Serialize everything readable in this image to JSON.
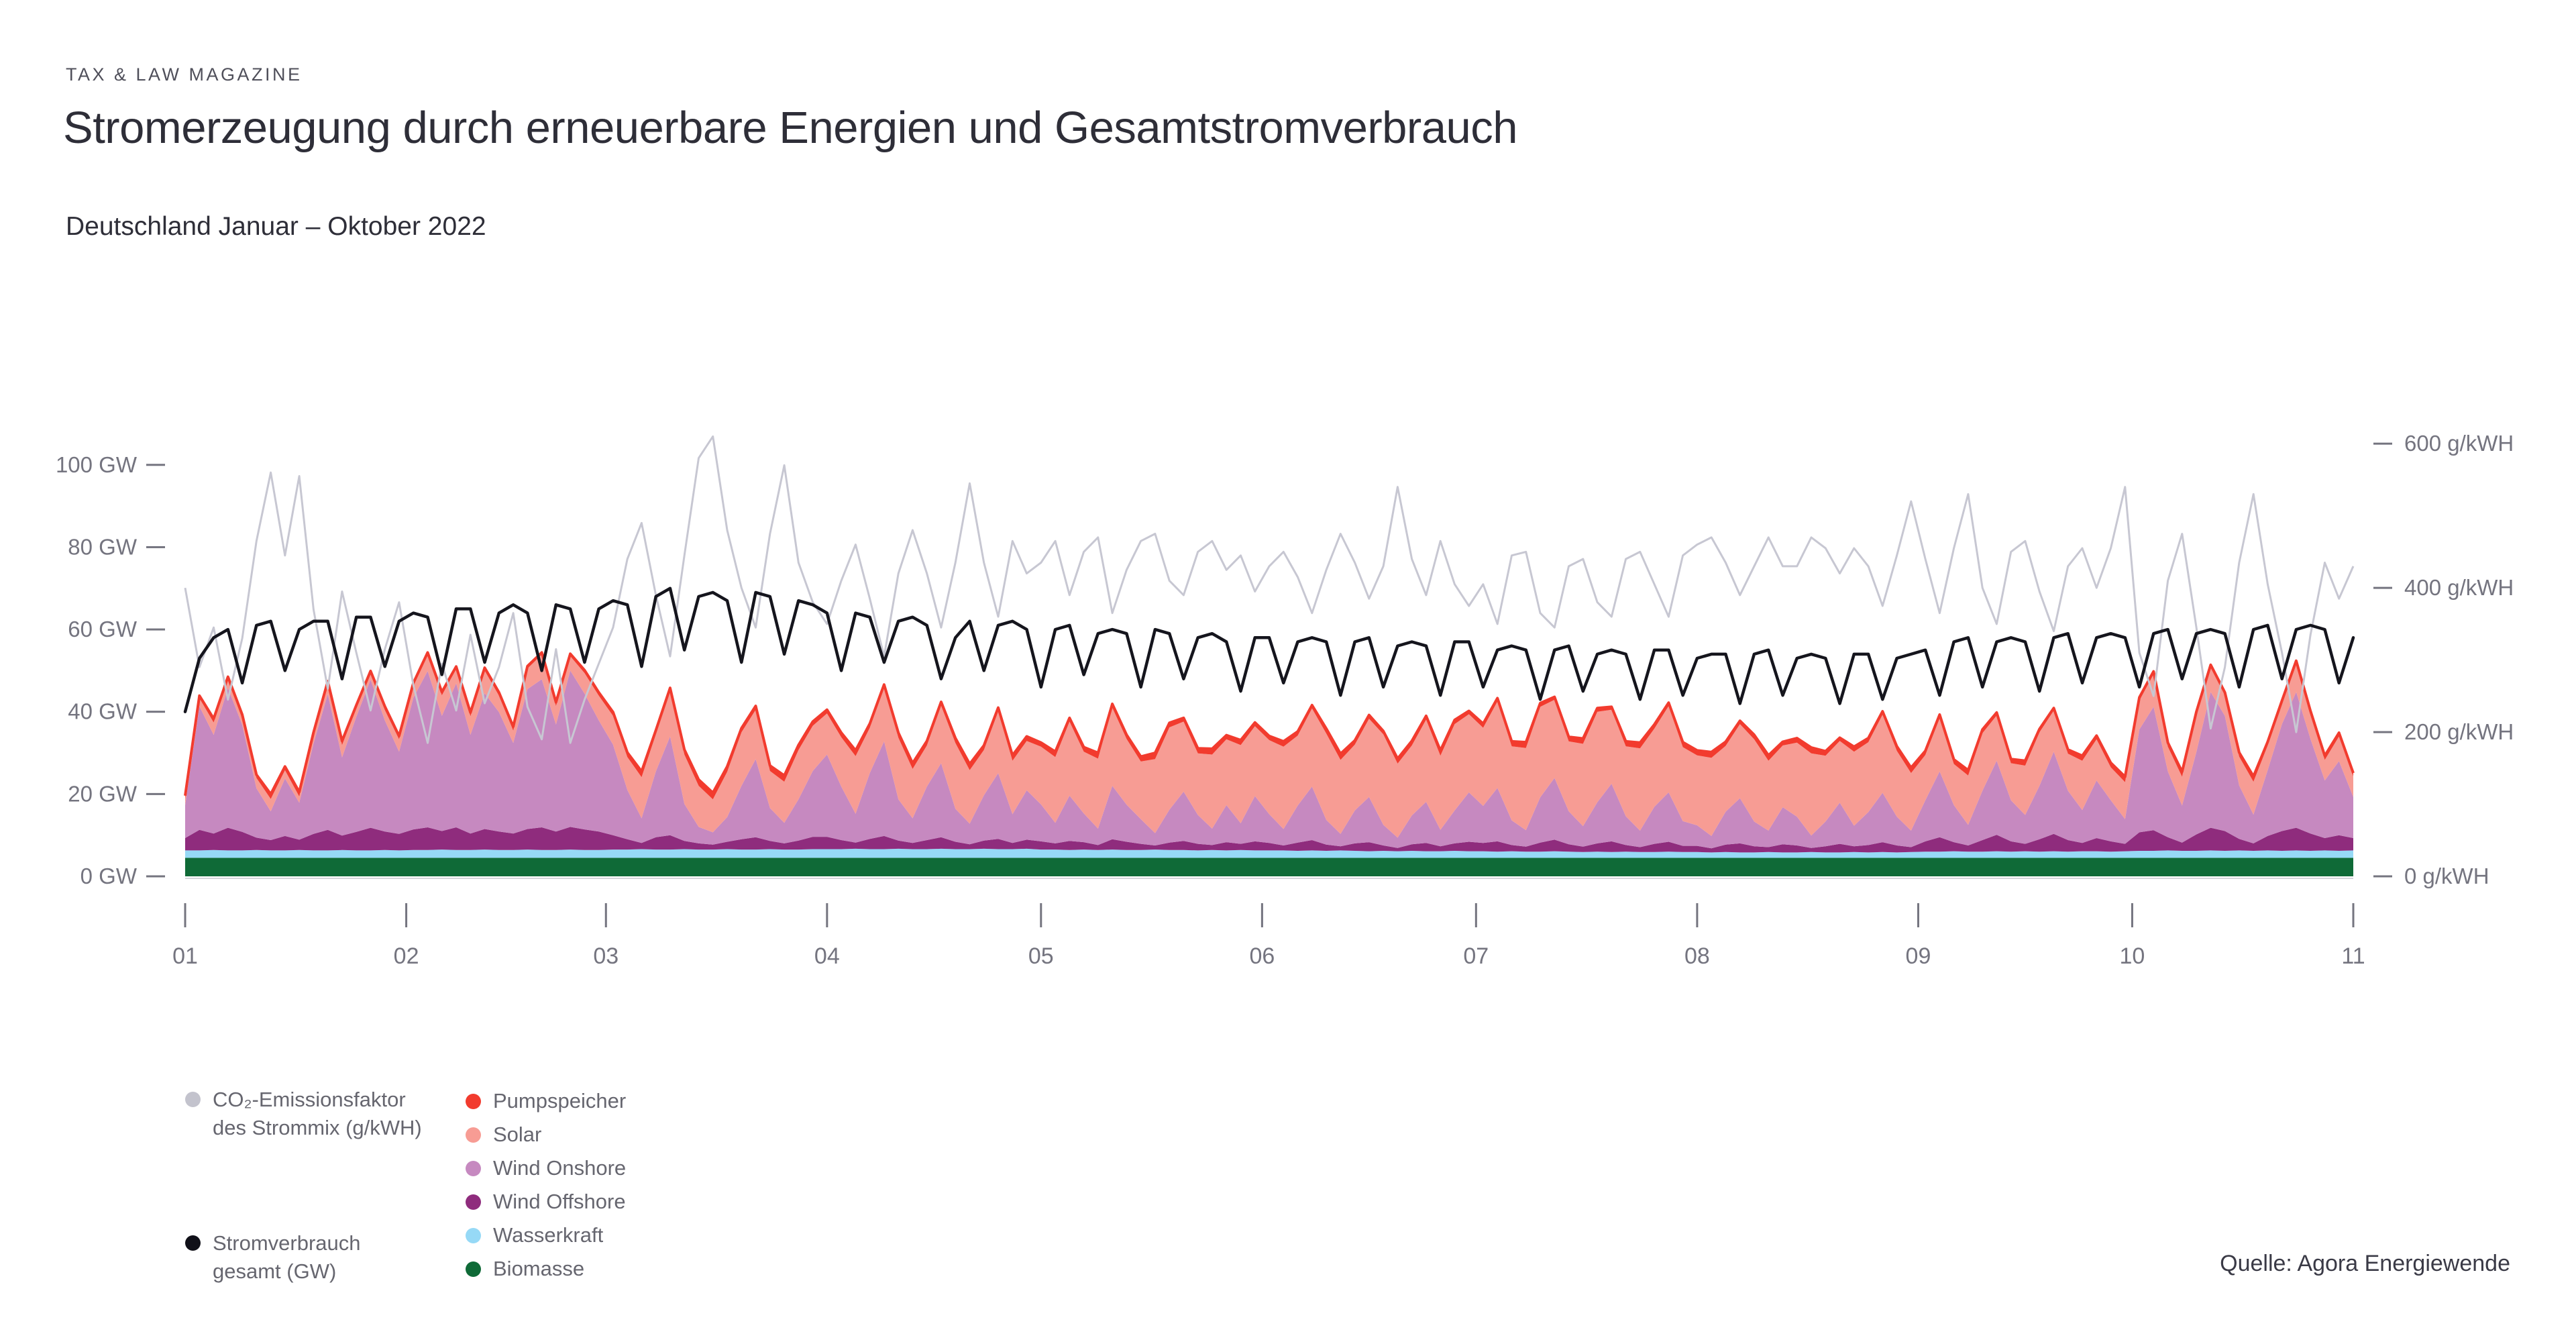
{
  "header": {
    "eyebrow": "TAX & LAW MAGAZINE",
    "title": "Stromerzeugung durch erneuerbare Energien und Gesamtstromverbrauch",
    "subtitle": "Deutschland Januar – Oktober 2022"
  },
  "source": "Quelle: Agora Energiewende",
  "legend": {
    "left": [
      {
        "key": "co2",
        "label": "CO₂-Emissionsfaktor des Strommix (g/kWH)",
        "dot": "#c3c3cd"
      },
      {
        "key": "verbrauch",
        "label": "Stromverbrauch gesamt (GW)",
        "dot": "#101018"
      }
    ],
    "right": [
      {
        "key": "pumpspeicher",
        "label": "Pumpspeicher",
        "dot": "#f23b2e"
      },
      {
        "key": "solar",
        "label": "Solar",
        "dot": "#f79c94"
      },
      {
        "key": "wind_onshore",
        "label": "Wind Onshore",
        "dot": "#c689c0"
      },
      {
        "key": "wind_offshore",
        "label": "Wind Offshore",
        "dot": "#8f2c7d"
      },
      {
        "key": "wasserkraft",
        "label": "Wasserkraft",
        "dot": "#96d9f6"
      },
      {
        "key": "biomasse",
        "label": "Biomasse",
        "dot": "#0f6a37"
      }
    ]
  },
  "chart_data": {
    "type": "area",
    "stacked": true,
    "title": "Stromerzeugung durch erneuerbare Energien und Gesamtstromverbrauch",
    "subtitle": "Deutschland Januar – Oktober 2022",
    "x_unit": "day_of_year_2022",
    "day_step": 2,
    "day_max": 304,
    "grid": false,
    "x_ticks": [
      {
        "label": "01",
        "day": 0
      },
      {
        "label": "02",
        "day": 31
      },
      {
        "label": "03",
        "day": 59
      },
      {
        "label": "04",
        "day": 90
      },
      {
        "label": "05",
        "day": 120
      },
      {
        "label": "06",
        "day": 151
      },
      {
        "label": "07",
        "day": 181
      },
      {
        "label": "08",
        "day": 212
      },
      {
        "label": "09",
        "day": 243
      },
      {
        "label": "10",
        "day": 273
      },
      {
        "label": "11",
        "day": 304
      }
    ],
    "y_left": {
      "unit": "GW",
      "min": 0,
      "max": 100,
      "ticks": [
        {
          "label": "0 GW",
          "value": 0
        },
        {
          "label": "20 GW",
          "value": 20
        },
        {
          "label": "40 GW",
          "value": 40
        },
        {
          "label": "60 GW",
          "value": 60
        },
        {
          "label": "80 GW",
          "value": 80
        },
        {
          "label": "100 GW",
          "value": 100
        }
      ]
    },
    "y_right": {
      "unit": "g/kWH",
      "min": 0,
      "max": 600,
      "ticks": [
        {
          "label": "0 g/kWH",
          "value": 0
        },
        {
          "label": "200 g/kWH",
          "value": 200
        },
        {
          "label": "400 g/kWH",
          "value": 400
        },
        {
          "label": "600 g/kWH",
          "value": 600
        }
      ]
    },
    "stack_order": [
      "biomasse",
      "wasserkraft",
      "wind_offshore",
      "wind_onshore",
      "solar",
      "pumpspeicher"
    ],
    "colors": {
      "pumpspeicher": "#f23b2e",
      "solar": "#f79c94",
      "wind_onshore": "#c689c0",
      "wind_offshore": "#8f2c7d",
      "wasserkraft": "#96d9f6",
      "biomasse": "#0f6a37",
      "verbrauch": "#15151d",
      "co2": "#c7c7d2",
      "axis": "#74747f",
      "baseline": "#d4d4da"
    },
    "series": {
      "biomasse": [
        4.5,
        4.5,
        4.5,
        4.5,
        4.5,
        4.5,
        4.5,
        4.5,
        4.5,
        4.5,
        4.5,
        4.5,
        4.5,
        4.5,
        4.5,
        4.5,
        4.5,
        4.5,
        4.5,
        4.5,
        4.5,
        4.5,
        4.5,
        4.5,
        4.5,
        4.5,
        4.5,
        4.5,
        4.5,
        4.5,
        4.5,
        4.5,
        4.5,
        4.5,
        4.5,
        4.5,
        4.5,
        4.5,
        4.5,
        4.5,
        4.5,
        4.5,
        4.5,
        4.5,
        4.5,
        4.5,
        4.5,
        4.5,
        4.5,
        4.5,
        4.5,
        4.5,
        4.5,
        4.5,
        4.5,
        4.5,
        4.5,
        4.5,
        4.5,
        4.5,
        4.5,
        4.5,
        4.5,
        4.5,
        4.5,
        4.5,
        4.5,
        4.5,
        4.5,
        4.5,
        4.5,
        4.5,
        4.5,
        4.5,
        4.5,
        4.5,
        4.5,
        4.5,
        4.5,
        4.5,
        4.5,
        4.5,
        4.5,
        4.5,
        4.5,
        4.5,
        4.5,
        4.5,
        4.5,
        4.5,
        4.5,
        4.5,
        4.5,
        4.5,
        4.5,
        4.5,
        4.5,
        4.5,
        4.5,
        4.5,
        4.5,
        4.5,
        4.5,
        4.5,
        4.5,
        4.5,
        4.5,
        4.5,
        4.5,
        4.5,
        4.5,
        4.5,
        4.5,
        4.5,
        4.5,
        4.5,
        4.5,
        4.5,
        4.5,
        4.5,
        4.5,
        4.5,
        4.5,
        4.5,
        4.5,
        4.5,
        4.5,
        4.5,
        4.5,
        4.5,
        4.5,
        4.5,
        4.5,
        4.5,
        4.5,
        4.5,
        4.5,
        4.5,
        4.5,
        4.5,
        4.5,
        4.5,
        4.5,
        4.5,
        4.5,
        4.5,
        4.5,
        4.5,
        4.5,
        4.5,
        4.5,
        4.5,
        4.5
      ],
      "wasserkraft": [
        1.8,
        1.8,
        1.9,
        1.8,
        1.8,
        1.9,
        1.8,
        1.8,
        1.9,
        1.8,
        1.8,
        1.9,
        1.8,
        1.8,
        1.9,
        1.8,
        1.9,
        1.9,
        2,
        1.9,
        1.9,
        2,
        1.9,
        1.9,
        2,
        1.9,
        1.9,
        2,
        1.9,
        1.9,
        2,
        2,
        2.1,
        2,
        2,
        2.1,
        2,
        2,
        2.1,
        2,
        2,
        2.1,
        2,
        2,
        2.1,
        2.1,
        2.1,
        2.2,
        2.1,
        2.1,
        2.2,
        2.1,
        2.1,
        2.2,
        2.1,
        2.1,
        2.2,
        2.1,
        2.1,
        2.2,
        2,
        2,
        1.9,
        2,
        1.9,
        2,
        1.9,
        1.9,
        2,
        1.9,
        1.9,
        1.8,
        1.9,
        1.8,
        1.9,
        1.8,
        1.8,
        1.8,
        1.7,
        1.8,
        1.7,
        1.8,
        1.7,
        1.6,
        1.7,
        1.6,
        1.7,
        1.6,
        1.6,
        1.7,
        1.6,
        1.6,
        1.5,
        1.6,
        1.5,
        1.5,
        1.6,
        1.5,
        1.4,
        1.5,
        1.4,
        1.5,
        1.4,
        1.4,
        1.5,
        1.4,
        1.4,
        1.3,
        1.4,
        1.3,
        1.3,
        1.4,
        1.3,
        1.3,
        1.4,
        1.3,
        1.3,
        1.4,
        1.3,
        1.4,
        1.3,
        1.4,
        1.5,
        1.5,
        1.6,
        1.5,
        1.5,
        1.6,
        1.5,
        1.6,
        1.5,
        1.6,
        1.5,
        1.6,
        1.6,
        1.5,
        1.6,
        1.7,
        1.7,
        1.8,
        1.7,
        1.7,
        1.8,
        1.7,
        1.8,
        1.7,
        1.8,
        1.7,
        1.8,
        1.7,
        1.8,
        1.7,
        1.8
      ],
      "wind_offshore": [
        3,
        5,
        4,
        5.5,
        4.5,
        3,
        2.5,
        3.5,
        2.5,
        4,
        5,
        3.5,
        4.5,
        5.5,
        4.5,
        4,
        5,
        5.5,
        4.5,
        5.5,
        4,
        5,
        4.5,
        4,
        5,
        5.5,
        4.5,
        5.5,
        5,
        4.5,
        3.5,
        2.5,
        1.5,
        3,
        3.5,
        2,
        1.5,
        1.2,
        1.8,
        2.5,
        3,
        2,
        1.5,
        2.2,
        3,
        3,
        2.2,
        1.5,
        2.5,
        3.2,
        2,
        1.5,
        2.2,
        2.8,
        1.8,
        1.2,
        2,
        2.5,
        1.5,
        2.2,
        2,
        1.5,
        2.2,
        1.8,
        1.2,
        2.5,
        2,
        1.5,
        1,
        1.8,
        2.2,
        1.6,
        1.2,
        2,
        1.5,
        2.2,
        1.8,
        1.2,
        2,
        2.5,
        1.5,
        1,
        1.8,
        2.2,
        1.3,
        0.8,
        1.6,
        2,
        1.2,
        1.8,
        2.3,
        2,
        2.5,
        1.5,
        1.2,
        2.2,
        2.8,
        1.8,
        1.3,
        2,
        2.6,
        1.6,
        1.2,
        2,
        2.4,
        1.5,
        1.5,
        1,
        1.8,
        2.2,
        1.5,
        1.2,
        2,
        1.7,
        1,
        1.5,
        2.1,
        1.4,
        1.8,
        2.4,
        1.7,
        1.2,
        2.5,
        3.5,
        2.2,
        1.5,
        2.8,
        4,
        2.5,
        1.8,
        3,
        4.2,
        2.8,
        2,
        3.2,
        2.5,
        1.8,
        4.5,
        5,
        3.2,
        2,
        4,
        5.5,
        4.8,
        2.8,
        1.8,
        3.5,
        4.8,
        5.5,
        4.2,
        3,
        3.8,
        3
      ],
      "wind_onshore": [
        8,
        30,
        24,
        34,
        26,
        12,
        7,
        14,
        9,
        22,
        33,
        19,
        28,
        36,
        27,
        20,
        32,
        38,
        28,
        35,
        24,
        33,
        29,
        22,
        34,
        36,
        26,
        38,
        33,
        27,
        22,
        12,
        6,
        16,
        24,
        9,
        4,
        3,
        6,
        13,
        19,
        8,
        5,
        10,
        16,
        20,
        13,
        7,
        16,
        23,
        10,
        6,
        13,
        18,
        8,
        5,
        11,
        16,
        7,
        12,
        9,
        5,
        11,
        7,
        4,
        13,
        9,
        6,
        3,
        8,
        12,
        7,
        4,
        9,
        5,
        11,
        7,
        4,
        9,
        13,
        6,
        3,
        8,
        11,
        5,
        2.5,
        7,
        10,
        4,
        8,
        12,
        9,
        13,
        6,
        4,
        11,
        15,
        8,
        5,
        10,
        14,
        7,
        4,
        9,
        12,
        6,
        5,
        3,
        8,
        11,
        6,
        4,
        9,
        7,
        3,
        6,
        10,
        5,
        8,
        12,
        7,
        4,
        10,
        16,
        9,
        5,
        12,
        18,
        10,
        7,
        13,
        20,
        12,
        8,
        14,
        10,
        6,
        25,
        30,
        16,
        9,
        20,
        33,
        28,
        13,
        7,
        16,
        26,
        33,
        23,
        14,
        18,
        10
      ],
      "solar": [
        1.5,
        2,
        3,
        2,
        1.5,
        2.5,
        3,
        2,
        1.5,
        2,
        2.5,
        3,
        2,
        1.5,
        2.5,
        3,
        3,
        4,
        5,
        3.5,
        4.5,
        5.5,
        4,
        3,
        5,
        6,
        4.5,
        3.5,
        5,
        6,
        7,
        8,
        10,
        9,
        11,
        12,
        10,
        8,
        11,
        13,
        12,
        9,
        10,
        12,
        11,
        10,
        12,
        14,
        11,
        13,
        15,
        12,
        10,
        14,
        16,
        13,
        11,
        15,
        13,
        12,
        14,
        16,
        18,
        15,
        17,
        19,
        16,
        14,
        18,
        20,
        17,
        15,
        18,
        16,
        19,
        17,
        18,
        20,
        17,
        19,
        21,
        18,
        16,
        19,
        22,
        18,
        17,
        20,
        18,
        21,
        19,
        19,
        21,
        18,
        20,
        22,
        19,
        17,
        20,
        22,
        18,
        17,
        20,
        19,
        21,
        18,
        17,
        19,
        16,
        18,
        20,
        17,
        15,
        18,
        20,
        16,
        15,
        18,
        17,
        19,
        16,
        14,
        11,
        13,
        10,
        12,
        14,
        11,
        9,
        12,
        13,
        10,
        9,
        12,
        10,
        8,
        9,
        7,
        8,
        6,
        7,
        9,
        6,
        5,
        7,
        8,
        6,
        5,
        7,
        6,
        5,
        6,
        5
      ],
      "pumpspeicher": [
        0.8,
        0.6,
        0.9,
        0.7,
        1,
        0.8,
        1.2,
        0.9,
        1.1,
        0.7,
        0.6,
        1,
        0.8,
        0.6,
        0.9,
        0.8,
        0.6,
        0.5,
        0.8,
        0.6,
        0.9,
        0.7,
        0.8,
        1,
        0.6,
        0.5,
        0.9,
        0.6,
        0.7,
        0.8,
        0.9,
        1.1,
        1.4,
        1,
        0.8,
        1.2,
        1.5,
        1.6,
        1.3,
        1,
        0.9,
        1.3,
        1.5,
        1.2,
        1,
        0.9,
        1.1,
        1.4,
        1,
        0.8,
        1.2,
        1.4,
        1.1,
        0.9,
        1.2,
        1.5,
        1.1,
        0.9,
        1.3,
        1.1,
        1,
        1.3,
        0.9,
        1.1,
        1.4,
        0.9,
        1,
        1.2,
        1.5,
        1.1,
        0.9,
        1.2,
        1.4,
        1,
        1.2,
        0.9,
        1,
        1.3,
        1,
        0.8,
        1.2,
        1.5,
        1,
        0.9,
        0.8,
        1.2,
        1.1,
        0.9,
        1.3,
        1,
        0.8,
        1,
        0.8,
        1.2,
        1.4,
        0.9,
        0.7,
        1.1,
        1.3,
        0.9,
        0.7,
        1.2,
        1.4,
        1,
        0.8,
        1.2,
        1.2,
        1.4,
        1,
        0.8,
        1.1,
        1.3,
        0.9,
        1.1,
        1.4,
        1.1,
        0.8,
        1.2,
        1,
        0.8,
        1.1,
        1.3,
        1,
        0.8,
        1.1,
        1.3,
        0.9,
        0.7,
        1,
        1.2,
        0.8,
        0.6,
        1,
        1.2,
        0.9,
        1.1,
        1.3,
        0.8,
        0.6,
        1,
        1.2,
        0.8,
        0.6,
        0.7,
        1,
        1.3,
        0.9,
        0.7,
        0.6,
        0.8,
        1,
        0.9,
        0.8
      ]
    },
    "lines": {
      "verbrauch": [
        40,
        53,
        58,
        60,
        47,
        61,
        62,
        50,
        60,
        62,
        62,
        48,
        63,
        63,
        51,
        62,
        64,
        63,
        49,
        65,
        65,
        52,
        64,
        66,
        64,
        50,
        66,
        65,
        52,
        65,
        67,
        66,
        51,
        68,
        70,
        55,
        68,
        69,
        67,
        52,
        69,
        68,
        54,
        67,
        66,
        64,
        50,
        64,
        63,
        52,
        62,
        63,
        61,
        48,
        58,
        62,
        50,
        61,
        62,
        60,
        46,
        60,
        61,
        49,
        59,
        60,
        59,
        46,
        60,
        59,
        48,
        58,
        59,
        57,
        45,
        58,
        58,
        47,
        57,
        58,
        57,
        44,
        57,
        58,
        46,
        56,
        57,
        56,
        44,
        57,
        57,
        46,
        55,
        56,
        55,
        43,
        55,
        56,
        45,
        54,
        55,
        54,
        43,
        55,
        55,
        44,
        53,
        54,
        54,
        42,
        54,
        55,
        44,
        53,
        54,
        53,
        42,
        54,
        54,
        43,
        53,
        54,
        55,
        44,
        57,
        58,
        46,
        57,
        58,
        57,
        45,
        58,
        59,
        47,
        58,
        59,
        58,
        46,
        59,
        60,
        48,
        59,
        60,
        59,
        46,
        60,
        61,
        48,
        60,
        61,
        60,
        47,
        58
      ],
      "co2": [
        400,
        290,
        345,
        245,
        330,
        465,
        560,
        445,
        555,
        370,
        260,
        395,
        310,
        230,
        315,
        380,
        265,
        185,
        295,
        230,
        335,
        240,
        290,
        365,
        235,
        190,
        315,
        185,
        245,
        295,
        345,
        440,
        490,
        390,
        305,
        445,
        580,
        610,
        480,
        400,
        345,
        475,
        570,
        435,
        380,
        350,
        410,
        460,
        385,
        305,
        420,
        480,
        420,
        345,
        435,
        545,
        435,
        360,
        465,
        420,
        435,
        465,
        390,
        450,
        470,
        365,
        425,
        465,
        475,
        410,
        390,
        450,
        465,
        425,
        445,
        395,
        430,
        450,
        415,
        365,
        425,
        475,
        435,
        385,
        430,
        540,
        440,
        390,
        465,
        405,
        375,
        405,
        350,
        445,
        450,
        365,
        345,
        430,
        440,
        380,
        360,
        440,
        450,
        405,
        360,
        445,
        460,
        470,
        435,
        390,
        430,
        470,
        430,
        430,
        470,
        455,
        420,
        455,
        430,
        375,
        445,
        520,
        440,
        365,
        455,
        530,
        400,
        350,
        450,
        465,
        395,
        340,
        430,
        455,
        400,
        455,
        540,
        310,
        250,
        410,
        475,
        345,
        205,
        290,
        435,
        530,
        405,
        310,
        200,
        335,
        435,
        385,
        430
      ]
    }
  }
}
